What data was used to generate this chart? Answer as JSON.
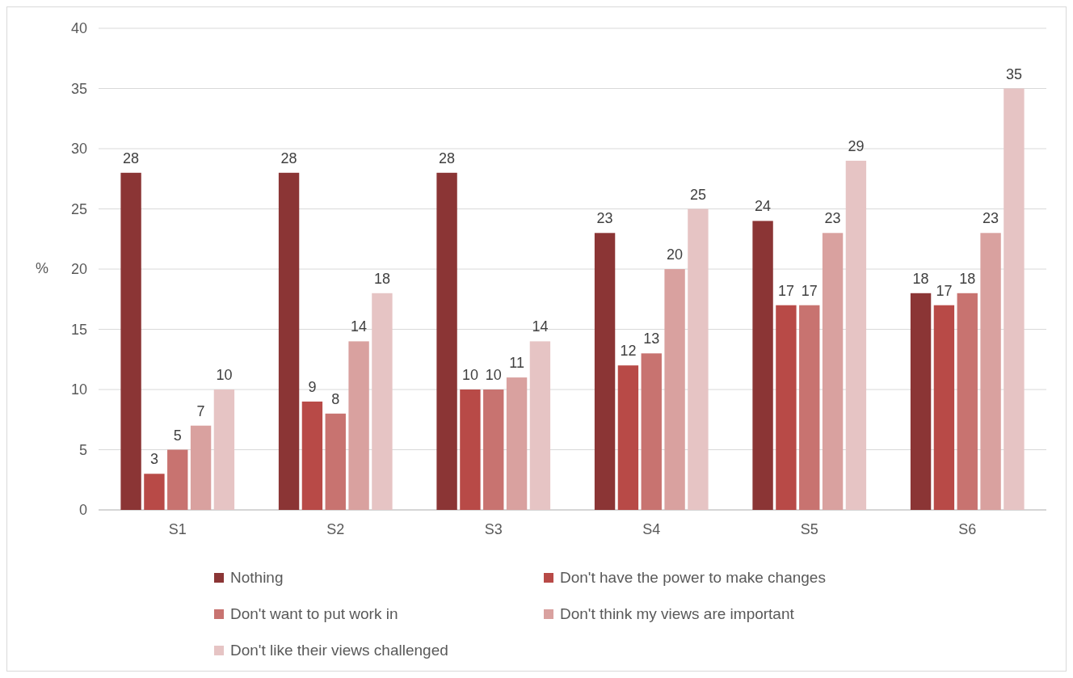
{
  "chart_data": {
    "type": "bar",
    "ylabel": "%",
    "categories": [
      "S1",
      "S2",
      "S3",
      "S4",
      "S5",
      "S6"
    ],
    "series": [
      {
        "name": "Nothing",
        "color": "#8b3535",
        "values": [
          28,
          28,
          28,
          23,
          24,
          18
        ]
      },
      {
        "name": "Don't have the power to make changes",
        "color": "#b84a47",
        "values": [
          3,
          9,
          10,
          12,
          17,
          17
        ]
      },
      {
        "name": "Don't want to put work in",
        "color": "#c87370",
        "values": [
          5,
          8,
          10,
          13,
          17,
          18
        ]
      },
      {
        "name": "Don't think my views are important",
        "color": "#d9a19f",
        "values": [
          7,
          14,
          11,
          20,
          23,
          23
        ]
      },
      {
        "name": "Don't like their views challenged",
        "color": "#e6c4c4",
        "values": [
          10,
          18,
          14,
          25,
          29,
          35
        ]
      }
    ],
    "ylim": [
      0,
      40
    ],
    "yticks": [
      0,
      5,
      10,
      15,
      20,
      25,
      30,
      35,
      40
    ],
    "grid": "y",
    "data_labels": true,
    "legend": "bottom"
  }
}
